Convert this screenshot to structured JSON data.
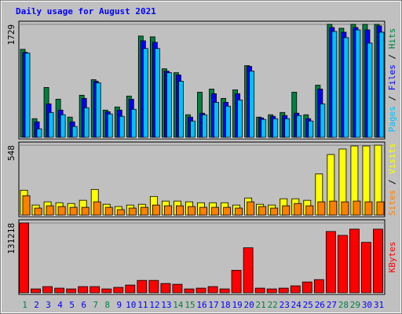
{
  "chart_data": [
    {
      "type": "bar",
      "title": "Daily usage for August 2021",
      "ylim": [
        0,
        1729
      ],
      "yticks": [
        1729
      ],
      "legend_separator": " / ",
      "series": [
        {
          "name": "Hits",
          "color": "#008040",
          "values": [
            1347,
            286,
            763,
            584,
            310,
            644,
            882,
            417,
            465,
            632,
            1550,
            1538,
            1049,
            989,
            346,
            691,
            739,
            596,
            727,
            1097,
            310,
            346,
            381,
            691,
            346,
            799,
            1729,
            1669,
            1729,
            1729,
            1729
          ]
        },
        {
          "name": "Files",
          "color": "#0000ff",
          "values": [
            1300,
            238,
            513,
            417,
            238,
            596,
            858,
            393,
            417,
            584,
            1478,
            1454,
            1013,
            954,
            310,
            370,
            668,
            536,
            668,
            1085,
            298,
            322,
            334,
            370,
            286,
            739,
            1681,
            1609,
            1681,
            1645,
            1705
          ]
        },
        {
          "name": "Pages",
          "color": "#00c0ff",
          "values": [
            1288,
            131,
            381,
            346,
            167,
            453,
            834,
            358,
            322,
            429,
            1359,
            1359,
            989,
            858,
            250,
            346,
            536,
            477,
            572,
            1013,
            274,
            286,
            286,
            334,
            250,
            513,
            1621,
            1526,
            1645,
            1442,
            1609
          ]
        }
      ]
    },
    {
      "type": "bar",
      "ylim": [
        0,
        548
      ],
      "yticks": [
        548
      ],
      "legend_separator": " / ",
      "series": [
        {
          "name": "Visits",
          "color": "#ffff00",
          "values": [
            195,
            79,
            104,
            97,
            91,
            116,
            201,
            85,
            67,
            79,
            85,
            146,
            110,
            110,
            104,
            97,
            97,
            97,
            79,
            134,
            85,
            79,
            128,
            128,
            116,
            323,
            475,
            518,
            542,
            542,
            548
          ]
        },
        {
          "name": "Sites",
          "color": "#ff8000",
          "values": [
            152,
            55,
            73,
            67,
            61,
            61,
            104,
            61,
            43,
            55,
            61,
            79,
            73,
            73,
            67,
            61,
            61,
            61,
            55,
            104,
            67,
            55,
            73,
            91,
            73,
            104,
            110,
            104,
            110,
            104,
            104
          ]
        }
      ]
    },
    {
      "type": "bar",
      "ylim": [
        0,
        131218
      ],
      "yticks": [
        131218
      ],
      "legend_separator": " / ",
      "categories": [
        "1",
        "2",
        "3",
        "4",
        "5",
        "6",
        "7",
        "8",
        "9",
        "10",
        "11",
        "12",
        "13",
        "14",
        "15",
        "16",
        "17",
        "18",
        "19",
        "20",
        "21",
        "22",
        "23",
        "24",
        "25",
        "26",
        "27",
        "28",
        "29",
        "30",
        "31"
      ],
      "category_colors": [
        "#008040",
        "#0000ff",
        "#0000ff",
        "#0000ff",
        "#0000ff",
        "#0000ff",
        "#008040",
        "#008040",
        "#0000ff",
        "#0000ff",
        "#0000ff",
        "#0000ff",
        "#0000ff",
        "#008040",
        "#008040",
        "#0000ff",
        "#0000ff",
        "#0000ff",
        "#0000ff",
        "#0000ff",
        "#008040",
        "#008040",
        "#0000ff",
        "#0000ff",
        "#0000ff",
        "#0000ff",
        "#0000ff",
        "#008040",
        "#008040",
        "#0000ff",
        "#0000ff"
      ],
      "series": [
        {
          "name": "KBytes",
          "color": "#ff0000",
          "values": [
            131218,
            7290,
            11664,
            8748,
            7290,
            11664,
            11664,
            7290,
            10206,
            14580,
            23328,
            23328,
            17496,
            16038,
            7290,
            8748,
            11664,
            7290,
            42282,
            84564,
            8748,
            7290,
            8748,
            13122,
            20412,
            24786,
            115182,
            107892,
            119556,
            94770,
            119556
          ]
        }
      ]
    }
  ]
}
